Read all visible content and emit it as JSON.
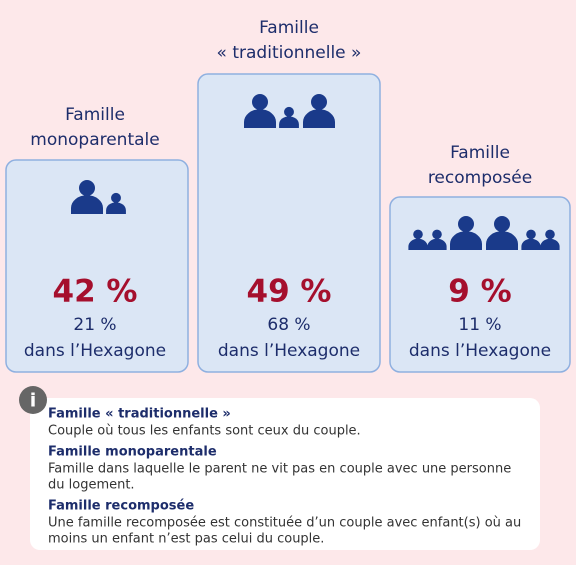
{
  "families": [
    {
      "title_lines": [
        "Famille",
        "monoparentale"
      ],
      "share": "42 %",
      "hexagone_share": "21 %",
      "hexagone_label": "dans l’Hexagone"
    },
    {
      "title_lines": [
        "Famille",
        "« traditionnelle »"
      ],
      "share": "49 %",
      "hexagone_share": "68 %",
      "hexagone_label": "dans l’Hexagone"
    },
    {
      "title_lines": [
        "Famille",
        "recomposée"
      ],
      "share": "9 %",
      "hexagone_share": "11 %",
      "hexagone_label": "dans l’Hexagone"
    }
  ],
  "info_icon": "i",
  "definitions": [
    {
      "term": "Famille « traditionnelle »",
      "text_lines": [
        "Couple où tous les enfants sont ceux du couple."
      ]
    },
    {
      "term": "Famille monoparentale",
      "text_lines": [
        "Famille dans laquelle le parent ne vit pas en couple avec une personne",
        "du logement."
      ]
    },
    {
      "term": "Famille recomposée",
      "text_lines": [
        "Une famille recomposée est constituée d’un couple avec enfant(s) où au",
        "moins un enfant n’est pas celui du couple."
      ]
    }
  ]
}
